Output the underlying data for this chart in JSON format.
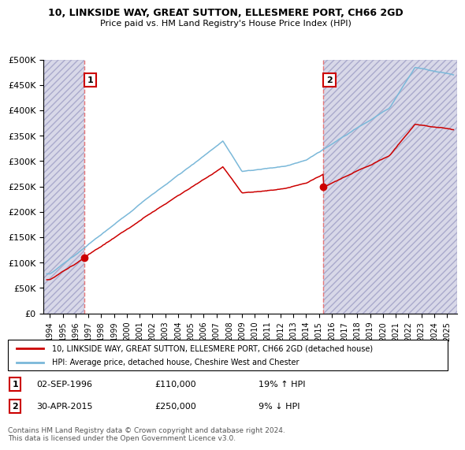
{
  "title": "10, LINKSIDE WAY, GREAT SUTTON, ELLESMERE PORT, CH66 2GD",
  "subtitle": "Price paid vs. HM Land Registry's House Price Index (HPI)",
  "legend_line1": "10, LINKSIDE WAY, GREAT SUTTON, ELLESMERE PORT, CH66 2GD (detached house)",
  "legend_line2": "HPI: Average price, detached house, Cheshire West and Chester",
  "footer": "Contains HM Land Registry data © Crown copyright and database right 2024.\nThis data is licensed under the Open Government Licence v3.0.",
  "annotation1_date": "02-SEP-1996",
  "annotation1_price": "£110,000",
  "annotation1_hpi": "19% ↑ HPI",
  "annotation2_date": "30-APR-2015",
  "annotation2_price": "£250,000",
  "annotation2_hpi": "9% ↓ HPI",
  "sale1_x": 1996.67,
  "sale1_y": 110000,
  "sale2_x": 2015.33,
  "sale2_y": 250000,
  "ylim": [
    0,
    500000
  ],
  "xlim_left": 1993.5,
  "xlim_right": 2025.8,
  "yticks": [
    0,
    50000,
    100000,
    150000,
    200000,
    250000,
    300000,
    350000,
    400000,
    450000,
    500000
  ],
  "ytick_labels": [
    "£0",
    "£50K",
    "£100K",
    "£150K",
    "£200K",
    "£250K",
    "£300K",
    "£350K",
    "£400K",
    "£450K",
    "£500K"
  ],
  "xticks": [
    1994,
    1995,
    1996,
    1997,
    1998,
    1999,
    2000,
    2001,
    2002,
    2003,
    2004,
    2005,
    2006,
    2007,
    2008,
    2009,
    2010,
    2011,
    2012,
    2013,
    2014,
    2015,
    2016,
    2017,
    2018,
    2019,
    2020,
    2021,
    2022,
    2023,
    2024,
    2025
  ],
  "hpi_color": "#7ab8d9",
  "price_color": "#cc0000",
  "annotation_box_color": "#cc0000",
  "vline_color": "#e87878",
  "hatch_color": "#c8c8d8"
}
